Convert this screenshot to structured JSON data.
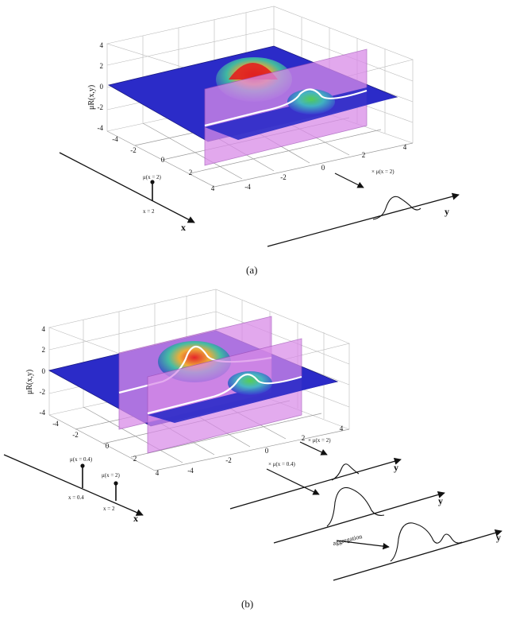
{
  "panel_a": {
    "caption": "(a)",
    "z_label": "μR(x,y)",
    "z_ticks": [
      "4",
      "2",
      "0",
      "-2",
      "-4"
    ],
    "x_ticks": [
      "-4",
      "-2",
      "0",
      "2",
      "4"
    ],
    "y_ticks": [
      "-4",
      "-2",
      "0",
      "2",
      "4"
    ],
    "x_axis": "x",
    "y_axis": "y",
    "stem_label": "μ(x = 2)",
    "stem_tick": "x = 2",
    "arrow_label": "× μ(x = 2)"
  },
  "panel_b": {
    "caption": "(b)",
    "z_label": "μR(x,y)",
    "z_ticks": [
      "4",
      "2",
      "0",
      "-2",
      "-4"
    ],
    "x_ticks": [
      "-4",
      "-2",
      "0",
      "2",
      "4"
    ],
    "y_ticks": [
      "-4",
      "-2",
      "0",
      "2",
      "4"
    ],
    "x_axis": "x",
    "y_axis_1": "y",
    "y_axis_2": "y",
    "y_axis_3": "y",
    "stem1_label": "μ(x = 0.4)",
    "stem2_label": "μ(x = 2)",
    "stem1_tick": "x = 0.4",
    "stem2_tick": "x = 2",
    "arrow1_label": "× μ(x = 2)",
    "arrow2_label": "× μ(x = 0.4)",
    "aggregation_label": "aggregation"
  },
  "colors": {
    "plane": "#2b2bc8",
    "cut_plane": "#d98be8",
    "peak_red": "#e02020",
    "curve_white": "#ffffff"
  }
}
